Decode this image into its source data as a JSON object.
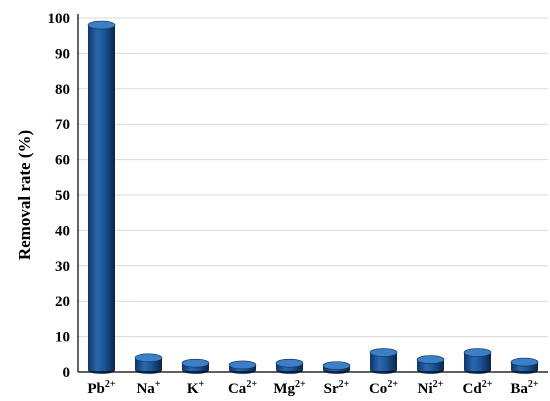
{
  "chart_data": {
    "type": "bar",
    "title": "",
    "xlabel": "",
    "ylabel": "Removal rate (%)",
    "ylim": [
      0,
      100
    ],
    "yticks": [
      0,
      10,
      20,
      30,
      40,
      50,
      60,
      70,
      80,
      90,
      100
    ],
    "grid": "horizontal",
    "legend": "none",
    "bar_style": "3d-cylinder",
    "colors": {
      "bar": "#1c4f8c",
      "bar_light": "#3c7fc9",
      "bar_dark": "#0c2a52",
      "grid": "#d9d9d9",
      "axis": "#000000"
    },
    "categories": [
      {
        "base": "Pb",
        "charge": "2+"
      },
      {
        "base": "Na",
        "charge": "+"
      },
      {
        "base": "K",
        "charge": "+"
      },
      {
        "base": "Ca",
        "charge": "2+"
      },
      {
        "base": "Mg",
        "charge": "2+"
      },
      {
        "base": "Sr",
        "charge": "2+"
      },
      {
        "base": "Co",
        "charge": "2+"
      },
      {
        "base": "Ni",
        "charge": "2+"
      },
      {
        "base": "Cd",
        "charge": "2+"
      },
      {
        "base": "Ba",
        "charge": "2+"
      }
    ],
    "values": [
      98,
      4,
      2.5,
      2,
      2.5,
      1.8,
      5.5,
      3.5,
      5.5,
      2.8
    ]
  }
}
